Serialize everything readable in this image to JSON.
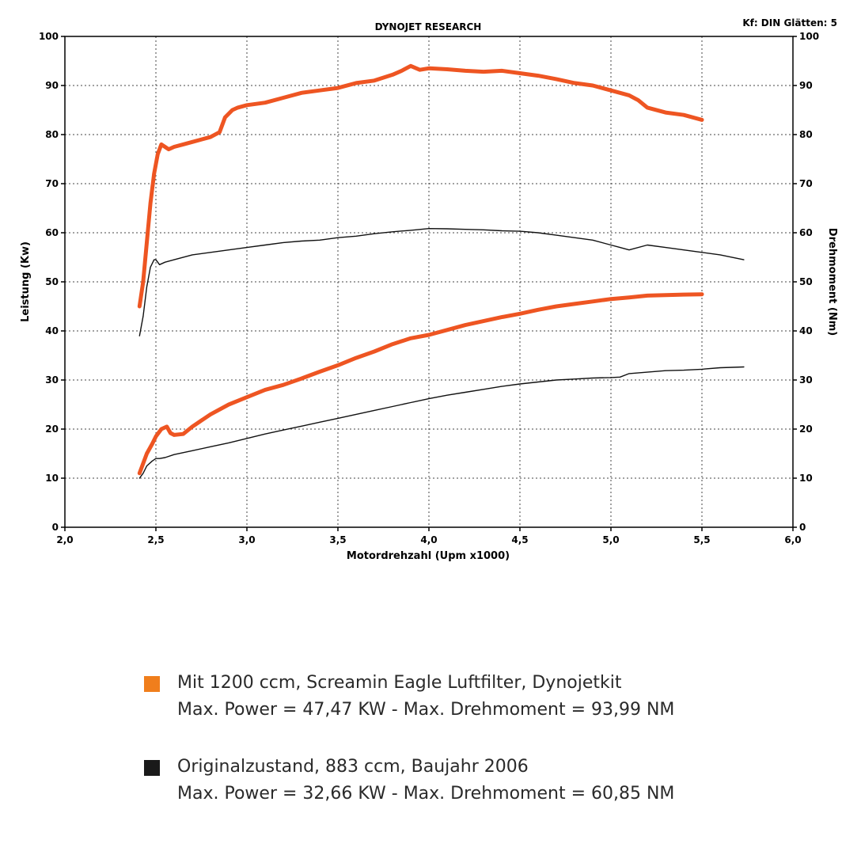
{
  "chart_data": {
    "type": "line",
    "title": "DYNOJET RESEARCH",
    "corner_note": "Kf: DIN  Glätten: 5",
    "xlabel": "Motordrehzahl (Upm x1000)",
    "ylabel_left": "Leistung (Kw)",
    "ylabel_right": "Drehmoment (Nm)",
    "xlim": [
      2.0,
      6.0
    ],
    "ylim": [
      0,
      100
    ],
    "x_ticks": [
      "2,0",
      "2,5",
      "3,0",
      "3,5",
      "4,0",
      "4,5",
      "5,0",
      "5,5",
      "6,0"
    ],
    "y_ticks": [
      "0",
      "10",
      "20",
      "30",
      "40",
      "50",
      "60",
      "70",
      "80",
      "90",
      "100"
    ],
    "grid": true,
    "series": [
      {
        "name": "Drehmoment – Mit 1200 ccm",
        "color": "#ee5522",
        "x": [
          2.41,
          2.43,
          2.45,
          2.47,
          2.49,
          2.51,
          2.53,
          2.55,
          2.57,
          2.6,
          2.65,
          2.7,
          2.8,
          2.85,
          2.88,
          2.92,
          2.95,
          3.0,
          3.1,
          3.2,
          3.3,
          3.4,
          3.5,
          3.6,
          3.7,
          3.8,
          3.85,
          3.9,
          3.95,
          4.0,
          4.1,
          4.2,
          4.3,
          4.4,
          4.5,
          4.6,
          4.7,
          4.8,
          4.9,
          5.0,
          5.1,
          5.15,
          5.2,
          5.3,
          5.4,
          5.5
        ],
        "values": [
          45,
          50,
          58,
          66,
          72,
          76,
          78,
          77.5,
          77,
          77.5,
          78,
          78.5,
          79.5,
          80.5,
          83.5,
          85,
          85.5,
          86,
          86.5,
          87.5,
          88.5,
          89,
          89.5,
          90.5,
          91,
          92.2,
          93,
          93.99,
          93.2,
          93.5,
          93.3,
          93,
          92.8,
          93,
          92.5,
          92,
          91.3,
          90.5,
          90,
          89,
          88,
          87,
          85.5,
          84.5,
          84,
          83
        ]
      },
      {
        "name": "Drehmoment – Originalzustand",
        "color": "#111111",
        "x": [
          2.41,
          2.43,
          2.45,
          2.47,
          2.49,
          2.5,
          2.52,
          2.55,
          2.6,
          2.7,
          2.8,
          2.9,
          3.0,
          3.1,
          3.2,
          3.3,
          3.4,
          3.5,
          3.6,
          3.7,
          3.8,
          3.9,
          4.0,
          4.1,
          4.2,
          4.3,
          4.4,
          4.5,
          4.6,
          4.7,
          4.8,
          4.9,
          5.0,
          5.05,
          5.1,
          5.2,
          5.3,
          5.4,
          5.5,
          5.6,
          5.73
        ],
        "values": [
          39,
          43,
          49,
          53,
          54.5,
          54.5,
          53.5,
          54,
          54.5,
          55.5,
          56,
          56.5,
          57,
          57.5,
          58,
          58.3,
          58.5,
          59,
          59.3,
          59.8,
          60.2,
          60.5,
          60.85,
          60.8,
          60.7,
          60.6,
          60.4,
          60.3,
          60,
          59.5,
          59,
          58.5,
          57.5,
          57,
          56.5,
          57.5,
          57,
          56.5,
          56,
          55.5,
          54.5
        ]
      },
      {
        "name": "Leistung – Mit 1200 ccm",
        "color": "#ee5522",
        "x": [
          2.41,
          2.43,
          2.45,
          2.48,
          2.5,
          2.53,
          2.56,
          2.58,
          2.6,
          2.65,
          2.7,
          2.8,
          2.9,
          3.0,
          3.1,
          3.2,
          3.3,
          3.4,
          3.5,
          3.6,
          3.7,
          3.8,
          3.9,
          4.0,
          4.1,
          4.2,
          4.3,
          4.4,
          4.5,
          4.6,
          4.7,
          4.8,
          4.9,
          5.0,
          5.1,
          5.2,
          5.3,
          5.4,
          5.5
        ],
        "values": [
          11,
          13,
          15,
          17,
          18.5,
          20,
          20.5,
          19.2,
          18.8,
          19,
          20.5,
          23,
          25,
          26.5,
          28,
          29,
          30.3,
          31.7,
          33,
          34.5,
          35.8,
          37.3,
          38.5,
          39.2,
          40.2,
          41.2,
          42,
          42.8,
          43.5,
          44.3,
          45,
          45.5,
          46,
          46.5,
          46.8,
          47.2,
          47.3,
          47.4,
          47.47
        ]
      },
      {
        "name": "Leistung – Originalzustand",
        "color": "#111111",
        "x": [
          2.41,
          2.43,
          2.45,
          2.48,
          2.5,
          2.52,
          2.55,
          2.6,
          2.7,
          2.8,
          2.9,
          3.0,
          3.1,
          3.2,
          3.3,
          3.4,
          3.5,
          3.6,
          3.7,
          3.8,
          3.9,
          4.0,
          4.1,
          4.2,
          4.3,
          4.4,
          4.5,
          4.6,
          4.7,
          4.8,
          4.9,
          5.0,
          5.05,
          5.1,
          5.2,
          5.3,
          5.4,
          5.5,
          5.6,
          5.73
        ],
        "values": [
          10,
          11,
          12.5,
          13.5,
          14,
          14,
          14.2,
          14.8,
          15.6,
          16.4,
          17.2,
          18.1,
          19,
          19.8,
          20.6,
          21.4,
          22.2,
          23,
          23.8,
          24.6,
          25.4,
          26.2,
          26.9,
          27.5,
          28.1,
          28.7,
          29.2,
          29.6,
          30,
          30.2,
          30.4,
          30.5,
          30.6,
          31.3,
          31.6,
          31.9,
          32,
          32.2,
          32.5,
          32.66
        ]
      }
    ]
  },
  "legend": [
    {
      "color": "#f07e1c",
      "line1": "Mit 1200 ccm, Screamin Eagle Luftfilter, Dynojetkit",
      "line2": "Max. Power = 47,47 KW - Max. Drehmoment = 93,99 NM"
    },
    {
      "color": "#1a1a1a",
      "line1": "Originalzustand, 883 ccm, Baujahr 2006",
      "line2": "Max. Power = 32,66 KW - Max. Drehmoment = 60,85 NM"
    }
  ]
}
